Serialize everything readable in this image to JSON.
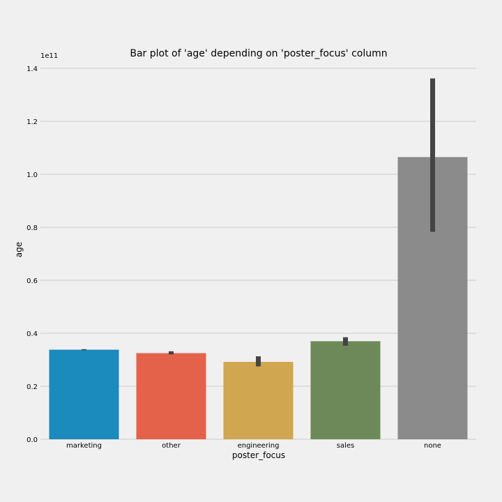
{
  "chart_data": {
    "type": "bar",
    "title": "Bar plot of 'age' depending on 'poster_focus' column",
    "xlabel": "poster_focus",
    "ylabel": "age",
    "scale_note": "1e11",
    "categories": [
      "marketing",
      "other",
      "engineering",
      "sales",
      "none"
    ],
    "values": [
      0.338,
      0.325,
      0.292,
      0.37,
      1.065
    ],
    "error_low": [
      0.336,
      0.32,
      0.275,
      0.353,
      0.783
    ],
    "error_high": [
      0.34,
      0.332,
      0.313,
      0.385,
      1.362
    ],
    "colors": [
      "#1b8abd",
      "#e5624a",
      "#d0a750",
      "#6d8959",
      "#8b8b8b"
    ],
    "ylim": [
      0,
      1.4
    ],
    "yticks": [
      "0.0",
      "0.2",
      "0.4",
      "0.6",
      "0.8",
      "1.0",
      "1.2",
      "1.4"
    ],
    "grid": "horizontal",
    "legend": "none"
  }
}
